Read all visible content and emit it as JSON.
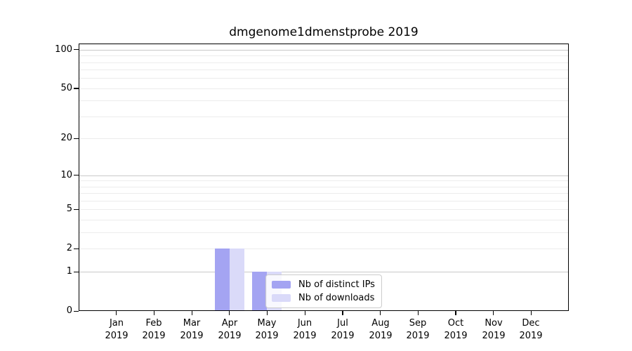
{
  "title": "dmgenome1dmenstprobe 2019",
  "chart_data": {
    "type": "bar",
    "title": "dmgenome1dmenstprobe 2019",
    "categories": [
      "Jan 2019",
      "Feb 2019",
      "Mar 2019",
      "Apr 2019",
      "May 2019",
      "Jun 2019",
      "Jul 2019",
      "Aug 2019",
      "Sep 2019",
      "Oct 2019",
      "Nov 2019",
      "Dec 2019"
    ],
    "series": [
      {
        "name": "Nb of distinct IPs",
        "color": "#a4a4f2",
        "values": [
          0,
          0,
          0,
          2,
          1,
          0,
          0,
          0,
          0,
          0,
          0,
          0
        ]
      },
      {
        "name": "Nb of downloads",
        "color": "#dadaf9",
        "values": [
          0,
          0,
          0,
          2,
          1,
          0,
          0,
          0,
          0,
          0,
          0,
          0
        ]
      }
    ],
    "xlabel": "",
    "ylabel": "",
    "yscale": "log1p",
    "ylim": [
      0,
      111.5
    ],
    "ytick_labels": [
      0,
      1,
      2,
      5,
      10,
      20,
      50,
      100
    ],
    "ytick_major_grid": [
      1,
      10,
      100
    ],
    "ytick_minor_grid": [
      2,
      3,
      4,
      5,
      6,
      7,
      8,
      9,
      20,
      30,
      40,
      50,
      60,
      70,
      80,
      90
    ],
    "grid": true,
    "legend_position": "inside lower center, overlapping May bars"
  },
  "colors": {
    "background": "#ffffff",
    "axis": "#000000",
    "text": "#000000",
    "grid_major": "#c9c9c9",
    "grid_minor": "#ececec",
    "legend_border": "#cccccc",
    "legend_background": "rgba(255,255,255,0.8)"
  }
}
